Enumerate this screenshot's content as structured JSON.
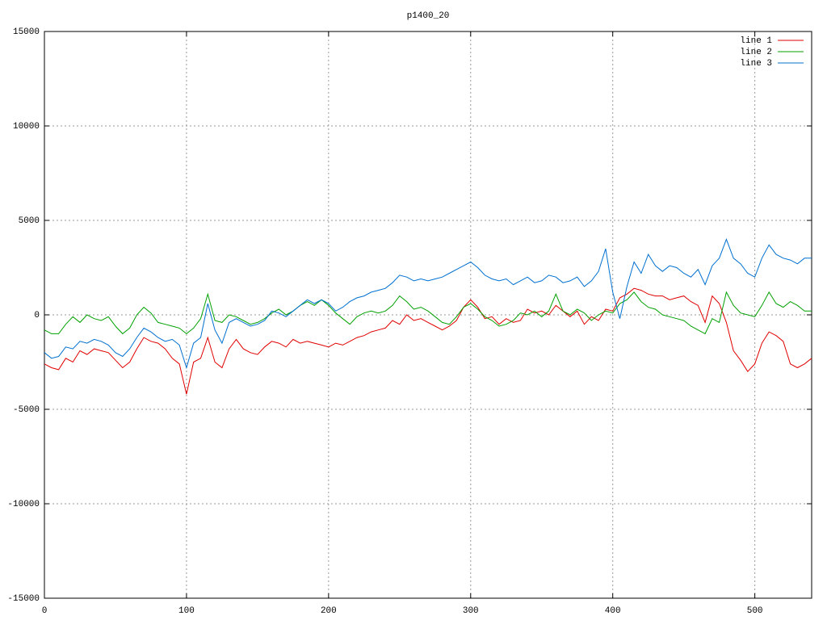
{
  "chart_data": {
    "type": "line",
    "title": "p1400_20",
    "x": [
      0,
      5,
      10,
      15,
      20,
      25,
      30,
      35,
      40,
      45,
      50,
      55,
      60,
      65,
      70,
      75,
      80,
      85,
      90,
      95,
      100,
      105,
      110,
      115,
      120,
      125,
      130,
      135,
      140,
      145,
      150,
      155,
      160,
      165,
      170,
      175,
      180,
      185,
      190,
      195,
      200,
      205,
      210,
      215,
      220,
      225,
      230,
      235,
      240,
      245,
      250,
      255,
      260,
      265,
      270,
      275,
      280,
      285,
      290,
      295,
      300,
      305,
      310,
      315,
      320,
      325,
      330,
      335,
      340,
      345,
      350,
      355,
      360,
      365,
      370,
      375,
      380,
      385,
      390,
      395,
      400,
      405,
      410,
      415,
      420,
      425,
      430,
      435,
      440,
      445,
      450,
      455,
      460,
      465,
      470,
      475,
      480,
      485,
      490,
      495,
      500,
      505,
      510,
      515,
      520,
      525,
      530,
      535,
      540
    ],
    "series": [
      {
        "name": "line 1",
        "color": "#e00000",
        "values": [
          -2600,
          -2800,
          -2900,
          -2300,
          -2500,
          -1900,
          -2100,
          -1800,
          -1900,
          -2000,
          -2400,
          -2800,
          -2500,
          -1800,
          -1200,
          -1400,
          -1500,
          -1800,
          -2300,
          -2600,
          -4200,
          -2500,
          -2300,
          -1200,
          -2500,
          -2800,
          -1800,
          -1300,
          -1800,
          -2000,
          -2100,
          -1700,
          -1400,
          -1500,
          -1700,
          -1300,
          -1500,
          -1400,
          -1500,
          -1600,
          -1700,
          -1500,
          -1600,
          -1400,
          -1200,
          -1100,
          -900,
          -800,
          -700,
          -300,
          -500,
          0,
          -300,
          -200,
          -400,
          -600,
          -800,
          -600,
          -300,
          400,
          800,
          400,
          -200,
          -100,
          -500,
          -200,
          -400,
          -300,
          300,
          100,
          200,
          0,
          500,
          200,
          -100,
          200,
          -500,
          -100,
          -300,
          300,
          200,
          900,
          1100,
          1400,
          1300,
          1100,
          1000,
          1000,
          800,
          900,
          1000,
          700,
          500,
          -400,
          1000,
          600,
          -400,
          -1900,
          -2400,
          -3000,
          -2600,
          -1500,
          -900,
          -1100,
          -1400,
          -2600,
          -2800,
          -2600,
          -2300
        ]
      },
      {
        "name": "line 2",
        "color": "#00a000",
        "values": [
          -800,
          -1000,
          -1000,
          -500,
          -100,
          -400,
          0,
          -200,
          -300,
          -100,
          -600,
          -1000,
          -700,
          0,
          400,
          100,
          -400,
          -500,
          -600,
          -700,
          -1000,
          -700,
          -200,
          1100,
          -300,
          -400,
          0,
          -100,
          -300,
          -500,
          -400,
          -200,
          100,
          300,
          0,
          200,
          500,
          700,
          500,
          800,
          500,
          100,
          -200,
          -500,
          -100,
          100,
          200,
          100,
          200,
          500,
          1000,
          700,
          300,
          400,
          200,
          -100,
          -400,
          -500,
          -100,
          400,
          600,
          300,
          -100,
          -300,
          -600,
          -500,
          -300,
          100,
          0,
          200,
          -100,
          200,
          1100,
          200,
          0,
          300,
          100,
          -300,
          0,
          200,
          100,
          600,
          800,
          1200,
          700,
          400,
          300,
          0,
          -100,
          -200,
          -300,
          -600,
          -800,
          -1000,
          -200,
          -400,
          1200,
          500,
          100,
          0,
          -100,
          500,
          1200,
          600,
          400,
          700,
          500,
          200,
          200
        ]
      },
      {
        "name": "line 3",
        "color": "#0070d0",
        "values": [
          -2000,
          -2300,
          -2200,
          -1700,
          -1800,
          -1400,
          -1500,
          -1300,
          -1400,
          -1600,
          -2000,
          -2200,
          -1800,
          -1200,
          -700,
          -900,
          -1200,
          -1400,
          -1300,
          -1600,
          -2800,
          -1500,
          -1200,
          600,
          -800,
          -1500,
          -400,
          -200,
          -400,
          -600,
          -500,
          -300,
          200,
          100,
          -100,
          200,
          500,
          800,
          600,
          800,
          600,
          200,
          400,
          700,
          900,
          1000,
          1200,
          1300,
          1400,
          1700,
          2100,
          2000,
          1800,
          1900,
          1800,
          1900,
          2000,
          2200,
          2400,
          2600,
          2800,
          2500,
          2100,
          1900,
          1800,
          1900,
          1600,
          1800,
          2000,
          1700,
          1800,
          2100,
          2000,
          1700,
          1800,
          2000,
          1500,
          1800,
          2300,
          3500,
          1200,
          -200,
          1500,
          2800,
          2200,
          3200,
          2600,
          2300,
          2600,
          2500,
          2200,
          2000,
          2400,
          1600,
          2600,
          3000,
          4000,
          3000,
          2700,
          2200,
          2000,
          3000,
          3700,
          3200,
          3000,
          2900,
          2700,
          3000,
          3000
        ]
      }
    ],
    "xlim": [
      0,
      540
    ],
    "xticks": [
      0,
      100,
      200,
      300,
      400,
      500
    ],
    "ylim": [
      -15000,
      15000
    ],
    "yticks": [
      -15000,
      -10000,
      -5000,
      0,
      5000,
      10000,
      15000
    ],
    "grid": true,
    "legend": "top-right"
  }
}
